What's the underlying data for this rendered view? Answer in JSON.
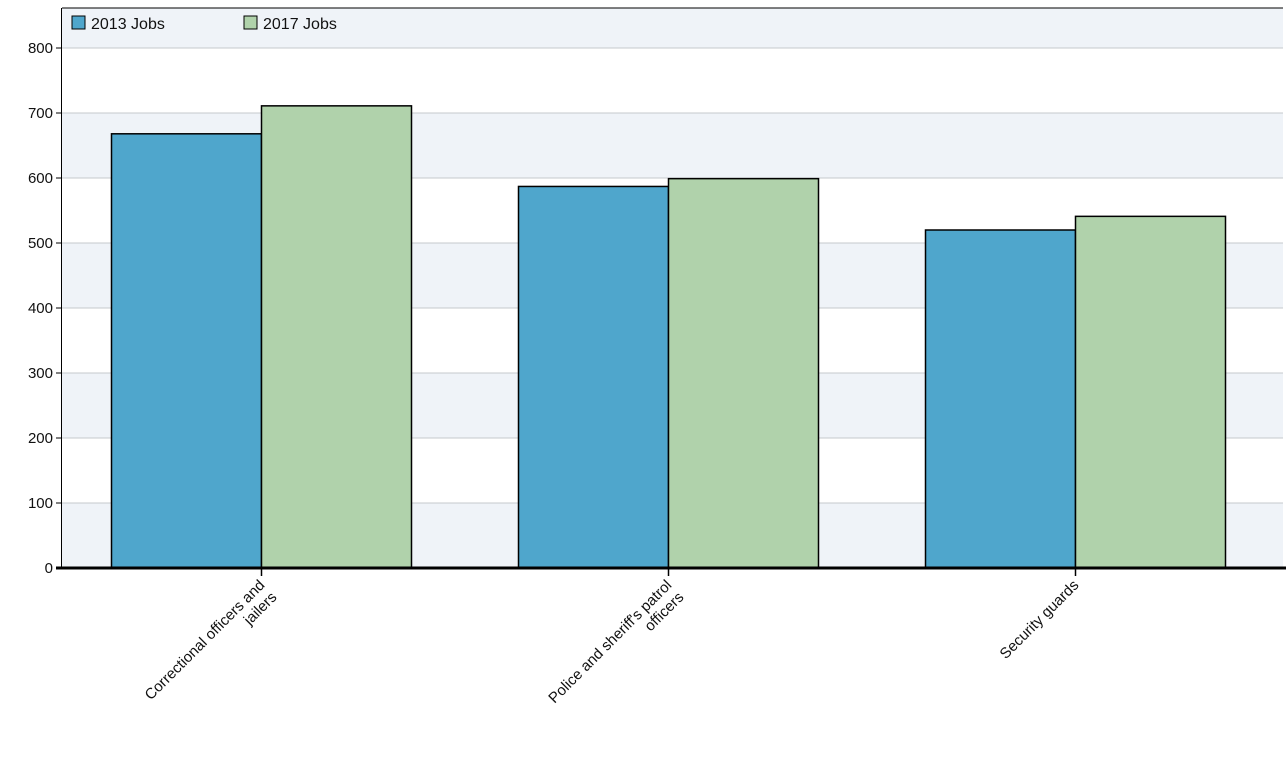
{
  "colors": {
    "series_2013": "#4fa6cc",
    "series_2017": "#b0d2ab",
    "band_light": "#eff3f8",
    "band_white": "#ffffff",
    "grid": "#c6c8cc",
    "axis": "#000000"
  },
  "chart_data": {
    "type": "bar",
    "categories": [
      [
        "Correctional officers and",
        "jailers"
      ],
      [
        "Police and sheriff's patrol",
        "officers"
      ],
      [
        "Security guards"
      ]
    ],
    "series": [
      {
        "name": "2013 Jobs",
        "values": [
          668,
          587,
          520
        ]
      },
      {
        "name": "2017 Jobs",
        "values": [
          711,
          599,
          541
        ]
      }
    ],
    "ylim": [
      0,
      800
    ],
    "yticks": [
      0,
      100,
      200,
      300,
      400,
      500,
      600,
      700,
      800
    ],
    "grid": true,
    "legend_position": "top-left"
  }
}
